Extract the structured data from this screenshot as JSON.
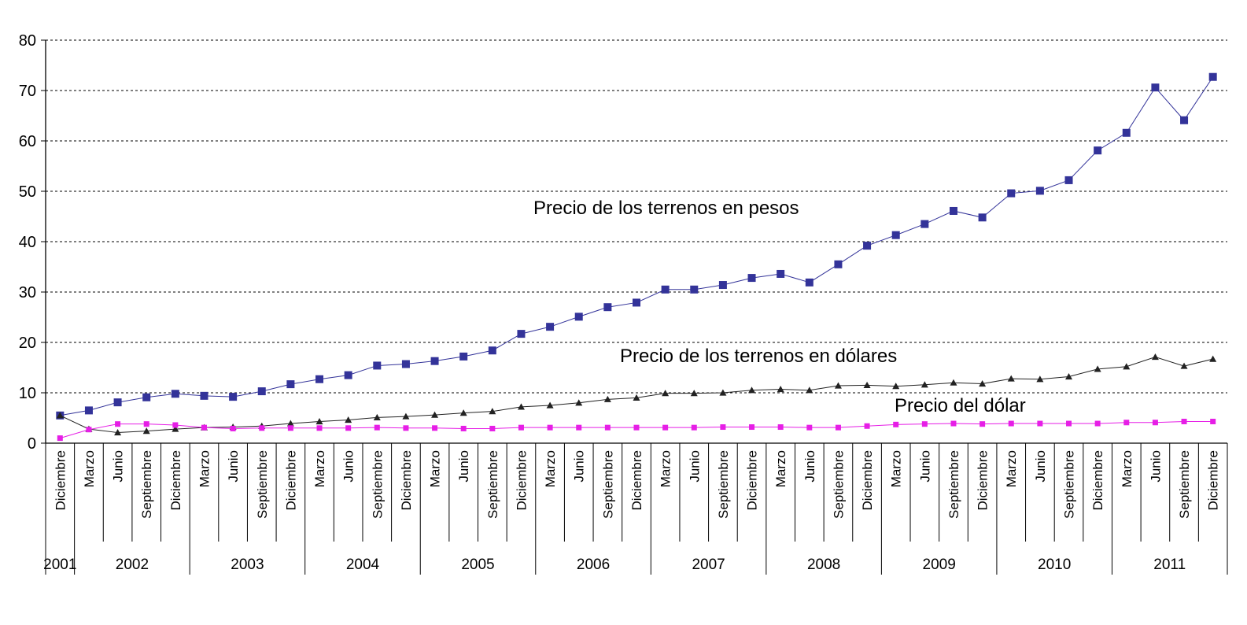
{
  "chart_data": {
    "type": "line",
    "ylim": [
      0,
      80
    ],
    "yticks": [
      0,
      10,
      20,
      30,
      40,
      50,
      60,
      70,
      80
    ],
    "grid": true,
    "categories": [
      "Diciembre",
      "Marzo",
      "Junio",
      "Septiembre",
      "Diciembre",
      "Marzo",
      "Junio",
      "Septiembre",
      "Diciembre",
      "Marzo",
      "Junio",
      "Septiembre",
      "Diciembre",
      "Marzo",
      "Junio",
      "Septiembre",
      "Diciembre",
      "Marzo",
      "Junio",
      "Septiembre",
      "Diciembre",
      "Marzo",
      "Junio",
      "Septiembre",
      "Diciembre",
      "Marzo",
      "Junio",
      "Septiembre",
      "Diciembre",
      "Marzo",
      "Junio",
      "Septiembre",
      "Diciembre",
      "Marzo",
      "Junio",
      "Septiembre",
      "Diciembre",
      "Marzo",
      "Junio",
      "Septiembre",
      "Diciembre"
    ],
    "years": [
      {
        "label": "2001",
        "count": 1
      },
      {
        "label": "2002",
        "count": 4
      },
      {
        "label": "2003",
        "count": 4
      },
      {
        "label": "2004",
        "count": 4
      },
      {
        "label": "2005",
        "count": 4
      },
      {
        "label": "2006",
        "count": 4
      },
      {
        "label": "2007",
        "count": 4
      },
      {
        "label": "2008",
        "count": 4
      },
      {
        "label": "2009",
        "count": 4
      },
      {
        "label": "2010",
        "count": 4
      },
      {
        "label": "2011",
        "count": 4
      }
    ],
    "series": [
      {
        "name": "Precio de los terrenos en pesos",
        "color": "#333399",
        "marker": "square",
        "values": [
          5.5,
          6.5,
          8.1,
          9.1,
          9.8,
          9.4,
          9.2,
          10.3,
          11.7,
          12.7,
          13.5,
          15.4,
          15.7,
          16.3,
          17.2,
          18.4,
          21.7,
          23.1,
          25.1,
          27.0,
          27.9,
          30.5,
          30.5,
          31.4,
          32.8,
          33.6,
          31.9,
          35.5,
          39.2,
          41.3,
          43.5,
          46.1,
          44.8,
          49.6,
          50.1,
          52.2,
          58.1,
          61.6,
          70.6,
          64.1,
          72.7
        ]
      },
      {
        "name": "Precio de los terrenos en dólares",
        "color": "#222222",
        "marker": "triangle",
        "values": [
          5.5,
          2.8,
          2.1,
          2.4,
          2.8,
          3.1,
          3.2,
          3.4,
          3.9,
          4.3,
          4.6,
          5.1,
          5.3,
          5.6,
          6.0,
          6.3,
          7.2,
          7.5,
          8.0,
          8.7,
          9.0,
          9.9,
          9.9,
          10.0,
          10.5,
          10.7,
          10.5,
          11.4,
          11.5,
          11.3,
          11.6,
          12.0,
          11.8,
          12.8,
          12.7,
          13.2,
          14.7,
          15.2,
          17.1,
          15.3,
          16.7
        ]
      },
      {
        "name": "Precio del dólar",
        "color": "#e61ee6",
        "marker": "square",
        "values": [
          1.0,
          2.7,
          3.8,
          3.8,
          3.6,
          3.1,
          2.9,
          3.0,
          3.0,
          3.0,
          3.0,
          3.1,
          3.0,
          3.0,
          2.9,
          2.9,
          3.1,
          3.1,
          3.1,
          3.1,
          3.1,
          3.1,
          3.1,
          3.2,
          3.2,
          3.2,
          3.1,
          3.1,
          3.4,
          3.7,
          3.8,
          3.9,
          3.8,
          3.9,
          3.9,
          3.9,
          3.9,
          4.1,
          4.1,
          4.3,
          4.3
        ]
      }
    ],
    "annotations": [
      {
        "text": "Precio de los terrenos en pesos",
        "series": 0
      },
      {
        "text": "Precio de los terrenos en dólares",
        "series": 1
      },
      {
        "text": "Precio del dólar",
        "series": 2
      }
    ]
  }
}
